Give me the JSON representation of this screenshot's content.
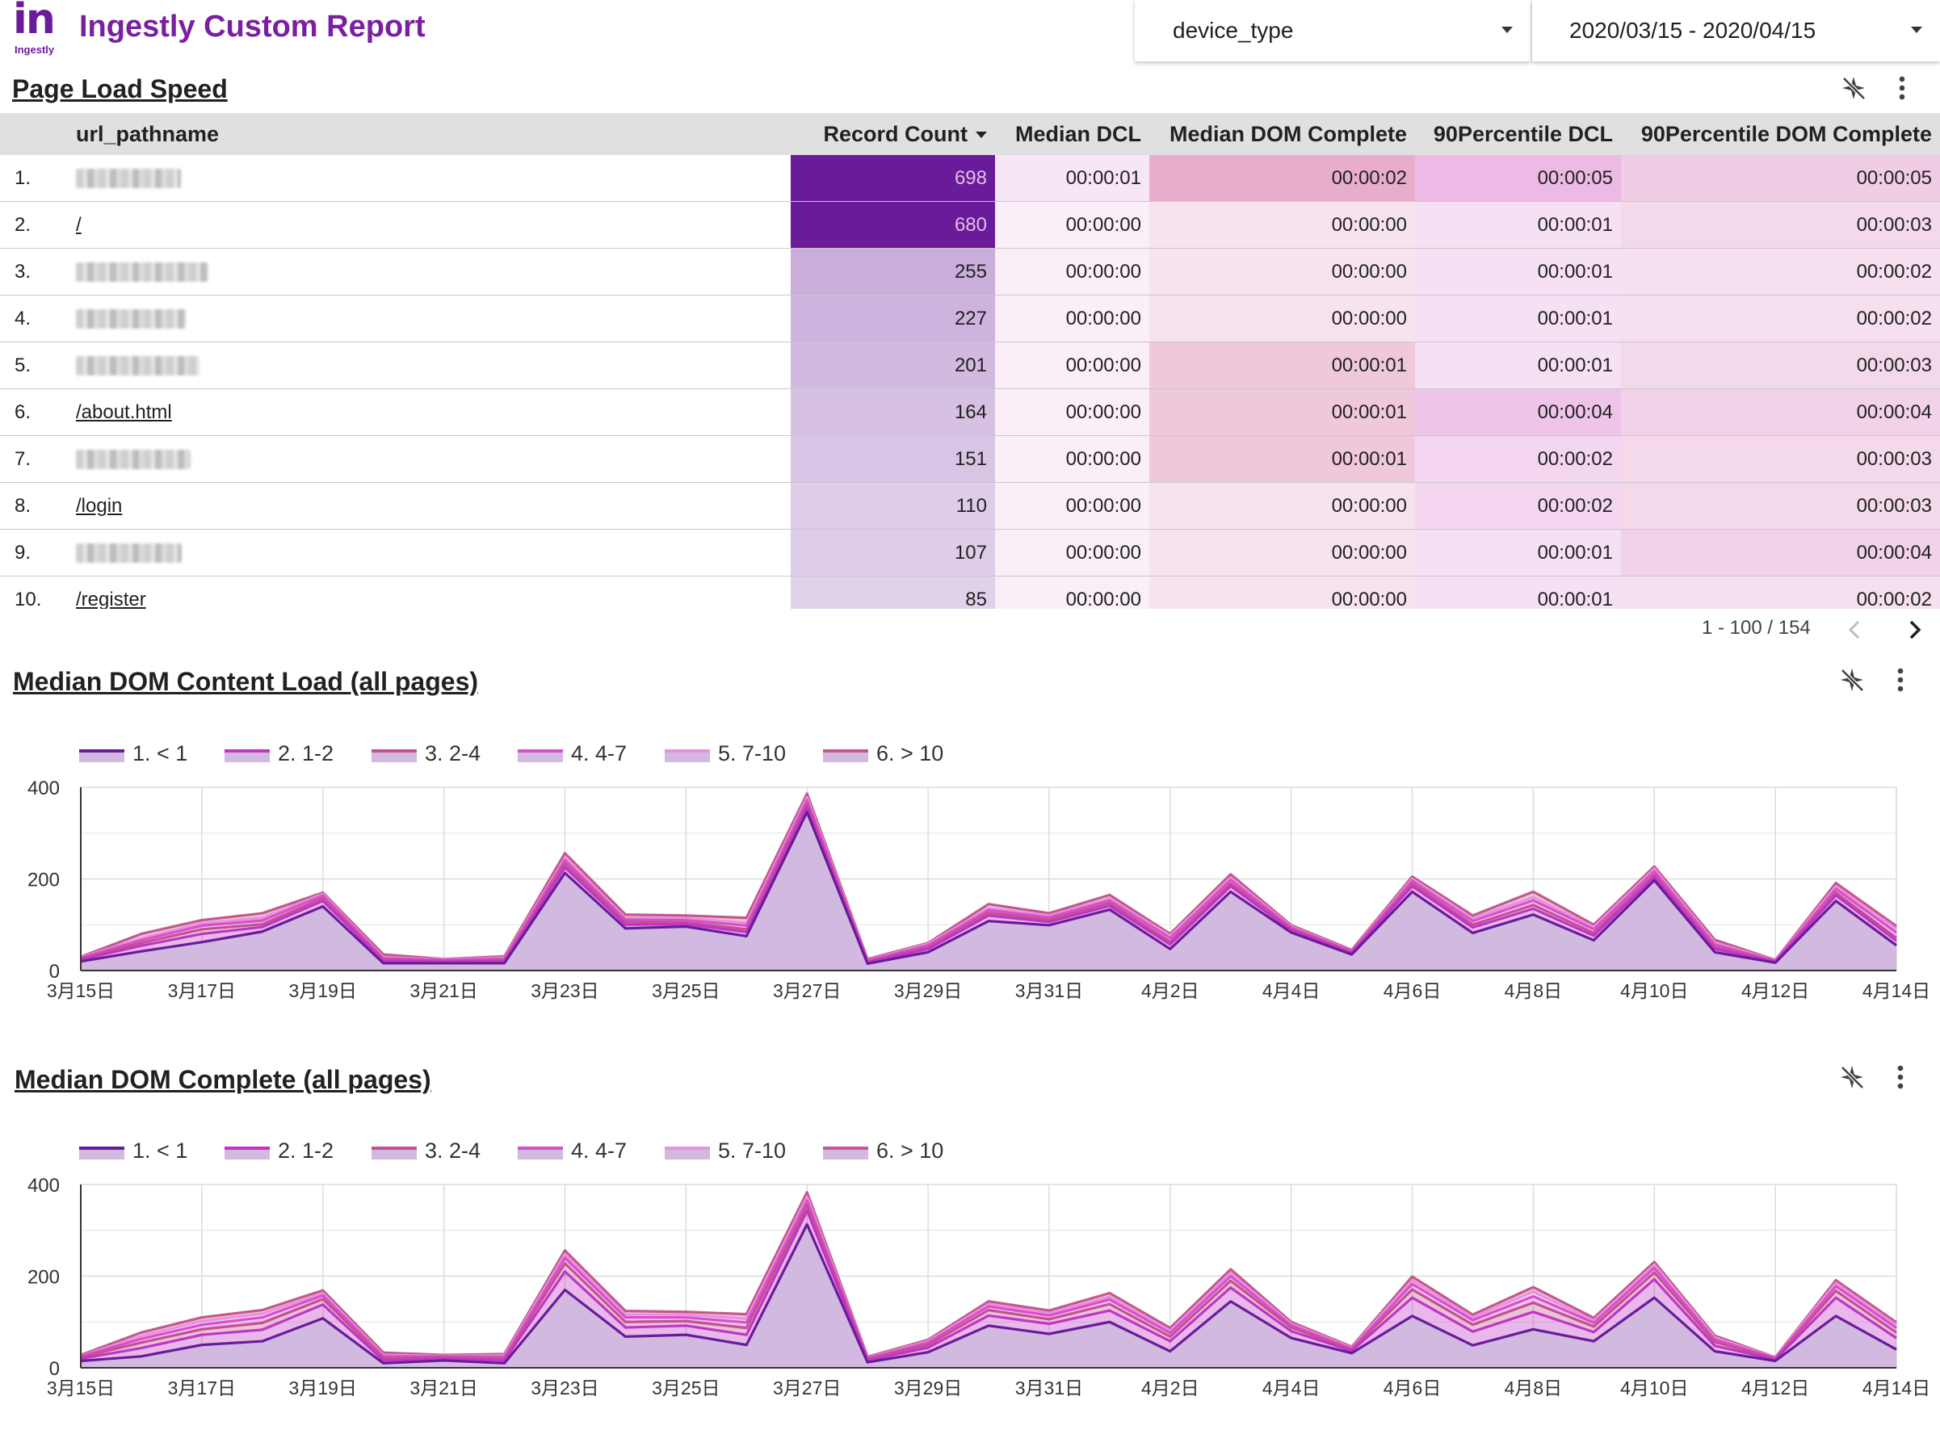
{
  "header": {
    "logo_text": "in",
    "logo_small": "Ingestly",
    "title": "Ingestly Custom Report",
    "device_filter": "device_type",
    "date_range": "2020/03/15 - 2020/04/15"
  },
  "colors": {
    "brand": "#7b1fa2",
    "record_count_strong": "#6a1b9a",
    "series": [
      "#6a1b9a",
      "#c035c6",
      "#c2528f",
      "#d94ed0",
      "#e891da",
      "#c5578f"
    ],
    "area_fill": "#d2b9e0"
  },
  "table": {
    "title": "Page Load Speed",
    "columns": [
      "url_pathname",
      "Record Count",
      "Median DCL",
      "Median DOM Complete",
      "90Percentile DCL",
      "90Percentile DOM Complete"
    ],
    "sort_column": "Record Count",
    "rows": [
      {
        "idx": "1.",
        "path": "",
        "redacted": true,
        "count": 698,
        "mdcl": "00:00:01",
        "mdom": "00:00:02",
        "p90dcl": "00:00:05",
        "p90dom": "00:00:05"
      },
      {
        "idx": "2.",
        "path": "/",
        "redacted": false,
        "count": 680,
        "mdcl": "00:00:00",
        "mdom": "00:00:00",
        "p90dcl": "00:00:01",
        "p90dom": "00:00:03"
      },
      {
        "idx": "3.",
        "path": "",
        "redacted": true,
        "count": 255,
        "mdcl": "00:00:00",
        "mdom": "00:00:00",
        "p90dcl": "00:00:01",
        "p90dom": "00:00:02"
      },
      {
        "idx": "4.",
        "path": "",
        "redacted": true,
        "count": 227,
        "mdcl": "00:00:00",
        "mdom": "00:00:00",
        "p90dcl": "00:00:01",
        "p90dom": "00:00:02"
      },
      {
        "idx": "5.",
        "path": "",
        "redacted": true,
        "count": 201,
        "mdcl": "00:00:00",
        "mdom": "00:00:01",
        "p90dcl": "00:00:01",
        "p90dom": "00:00:03"
      },
      {
        "idx": "6.",
        "path": "/about.html",
        "redacted": false,
        "count": 164,
        "mdcl": "00:00:00",
        "mdom": "00:00:01",
        "p90dcl": "00:00:04",
        "p90dom": "00:00:04"
      },
      {
        "idx": "7.",
        "path": "",
        "redacted": true,
        "count": 151,
        "mdcl": "00:00:00",
        "mdom": "00:00:01",
        "p90dcl": "00:00:02",
        "p90dom": "00:00:03"
      },
      {
        "idx": "8.",
        "path": "/login",
        "redacted": false,
        "count": 110,
        "mdcl": "00:00:00",
        "mdom": "00:00:00",
        "p90dcl": "00:00:02",
        "p90dom": "00:00:03"
      },
      {
        "idx": "9.",
        "path": "",
        "redacted": true,
        "count": 107,
        "mdcl": "00:00:00",
        "mdom": "00:00:00",
        "p90dcl": "00:00:01",
        "p90dom": "00:00:04"
      },
      {
        "idx": "10.",
        "path": "/register",
        "redacted": false,
        "count": 85,
        "mdcl": "00:00:00",
        "mdom": "00:00:00",
        "p90dcl": "00:00:01",
        "p90dom": "00:00:02"
      }
    ],
    "pager_text": "1 - 100 / 154"
  },
  "icons": {
    "toolbar": [
      "filter-off-icon",
      "more-vert-icon"
    ],
    "pager": [
      "chevron-left-icon",
      "chevron-right-icon"
    ]
  },
  "chart_data": [
    {
      "type": "area",
      "stacked": true,
      "title": "Median DOM Content Load (all pages)",
      "xlabel": "",
      "ylabel": "",
      "ylim": [
        0,
        400
      ],
      "yticks": [
        0,
        200,
        400
      ],
      "x": [
        "3月15日",
        "3月16日",
        "3月17日",
        "3月18日",
        "3月19日",
        "3月20日",
        "3月21日",
        "3月22日",
        "3月23日",
        "3月24日",
        "3月25日",
        "3月26日",
        "3月27日",
        "3月28日",
        "3月29日",
        "3月30日",
        "3月31日",
        "4月1日",
        "4月2日",
        "4月3日",
        "4月4日",
        "4月5日",
        "4月6日",
        "4月7日",
        "4月8日",
        "4月9日",
        "4月10日",
        "4月11日",
        "4月12日",
        "4月13日",
        "4月14日"
      ],
      "xtick_labels": [
        "3月15日",
        "3月17日",
        "3月19日",
        "3月21日",
        "3月23日",
        "3月25日",
        "3月27日",
        "3月29日",
        "3月31日",
        "4月2日",
        "4月4日",
        "4月6日",
        "4月8日",
        "4月10日",
        "4月12日",
        "4月14日"
      ],
      "legend_position": "top-left",
      "grid": true,
      "series": [
        {
          "name": "1. < 1",
          "values": [
            20,
            42,
            62,
            85,
            140,
            16,
            16,
            16,
            213,
            92,
            96,
            75,
            346,
            15,
            40,
            108,
            99,
            133,
            47,
            172,
            83,
            35,
            172,
            82,
            122,
            66,
            197,
            40,
            17,
            152,
            55
          ]
        },
        {
          "name": "2. 1-2",
          "values": [
            4,
            12,
            18,
            10,
            12,
            5,
            3,
            4,
            12,
            8,
            5,
            9,
            10,
            3,
            7,
            12,
            7,
            8,
            10,
            12,
            5,
            3,
            12,
            12,
            13,
            10,
            7,
            7,
            2,
            12,
            10
          ]
        },
        {
          "name": "3. 2-4",
          "values": [
            2,
            6,
            10,
            6,
            6,
            3,
            2,
            3,
            8,
            6,
            4,
            6,
            8,
            2,
            4,
            6,
            5,
            6,
            6,
            6,
            3,
            2,
            6,
            6,
            8,
            6,
            5,
            4,
            1,
            6,
            6
          ]
        },
        {
          "name": "4. 4-7",
          "values": [
            2,
            6,
            8,
            8,
            6,
            3,
            2,
            3,
            8,
            5,
            5,
            8,
            8,
            2,
            4,
            6,
            5,
            6,
            8,
            8,
            3,
            2,
            6,
            8,
            10,
            8,
            8,
            6,
            1,
            8,
            12
          ]
        },
        {
          "name": "5. 7-10",
          "values": [
            1,
            4,
            5,
            6,
            3,
            2,
            1,
            2,
            5,
            4,
            4,
            6,
            6,
            1,
            3,
            4,
            4,
            4,
            5,
            5,
            2,
            1,
            4,
            6,
            7,
            5,
            5,
            4,
            1,
            6,
            8
          ]
        },
        {
          "name": "6. > 10",
          "values": [
            1,
            10,
            7,
            10,
            3,
            6,
            1,
            3,
            10,
            7,
            6,
            11,
            8,
            2,
            2,
            9,
            5,
            8,
            4,
            7,
            3,
            2,
            5,
            6,
            12,
            5,
            5,
            6,
            1,
            7,
            6
          ]
        }
      ]
    },
    {
      "type": "area",
      "stacked": true,
      "title": "Median DOM Complete (all pages)",
      "xlabel": "",
      "ylabel": "",
      "ylim": [
        0,
        400
      ],
      "yticks": [
        0,
        200,
        400
      ],
      "x": [
        "3月15日",
        "3月16日",
        "3月17日",
        "3月18日",
        "3月19日",
        "3月20日",
        "3月21日",
        "3月22日",
        "3月23日",
        "3月24日",
        "3月25日",
        "3月26日",
        "3月27日",
        "3月28日",
        "3月29日",
        "3月30日",
        "3月31日",
        "4月1日",
        "4月2日",
        "4月3日",
        "4月4日",
        "4月5日",
        "4月6日",
        "4月7日",
        "4月8日",
        "4月9日",
        "4月10日",
        "4月11日",
        "4月12日",
        "4月13日",
        "4月14日"
      ],
      "xtick_labels": [
        "3月15日",
        "3月17日",
        "3月19日",
        "3月21日",
        "3月23日",
        "3月25日",
        "3月27日",
        "3月29日",
        "3月31日",
        "4月2日",
        "4月4日",
        "4月6日",
        "4月8日",
        "4月10日",
        "4月12日",
        "4月14日"
      ],
      "legend_position": "top-left",
      "grid": true,
      "series": [
        {
          "name": "1. < 1",
          "values": [
            15,
            25,
            50,
            58,
            108,
            10,
            16,
            10,
            170,
            68,
            72,
            50,
            313,
            12,
            34,
            92,
            74,
            100,
            36,
            145,
            65,
            32,
            113,
            49,
            84,
            58,
            153,
            36,
            15,
            113,
            40
          ]
        },
        {
          "name": "2. 1-2",
          "values": [
            5,
            18,
            22,
            25,
            30,
            6,
            4,
            6,
            40,
            20,
            20,
            22,
            30,
            4,
            10,
            22,
            22,
            25,
            22,
            30,
            15,
            5,
            40,
            30,
            38,
            20,
            40,
            12,
            3,
            40,
            25
          ]
        },
        {
          "name": "3. 2-4",
          "values": [
            3,
            12,
            12,
            15,
            12,
            5,
            3,
            4,
            18,
            12,
            10,
            15,
            12,
            3,
            6,
            12,
            10,
            14,
            10,
            15,
            8,
            3,
            18,
            15,
            20,
            12,
            15,
            8,
            2,
            15,
            12
          ]
        },
        {
          "name": "4. 4-7",
          "values": [
            2,
            8,
            10,
            12,
            8,
            4,
            2,
            4,
            12,
            10,
            8,
            12,
            10,
            2,
            5,
            8,
            8,
            10,
            8,
            10,
            5,
            2,
            12,
            10,
            14,
            8,
            10,
            6,
            1,
            10,
            10
          ]
        },
        {
          "name": "5. 7-10",
          "values": [
            1,
            6,
            8,
            8,
            5,
            3,
            1,
            3,
            8,
            6,
            6,
            8,
            8,
            1,
            3,
            5,
            5,
            6,
            5,
            7,
            3,
            2,
            8,
            6,
            10,
            5,
            7,
            4,
            1,
            7,
            6
          ]
        },
        {
          "name": "6. > 10",
          "values": [
            2,
            8,
            8,
            8,
            6,
            5,
            2,
            3,
            8,
            8,
            6,
            10,
            10,
            2,
            3,
            6,
            6,
            8,
            6,
            8,
            4,
            2,
            8,
            6,
            10,
            6,
            6,
            4,
            1,
            6,
            6
          ]
        }
      ]
    }
  ]
}
